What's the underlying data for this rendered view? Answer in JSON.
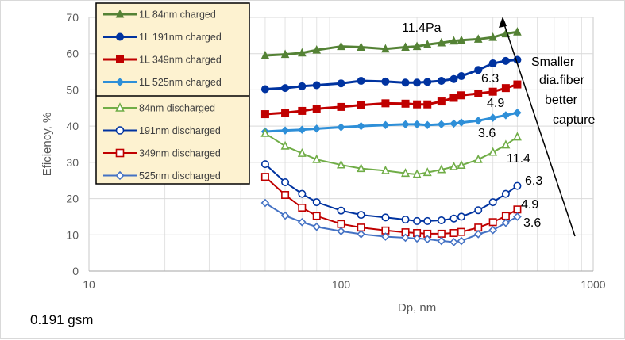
{
  "chart_data": {
    "type": "line",
    "title": "",
    "xlabel": "Dp, nm",
    "ylabel": "Eficiency, %",
    "xscale": "log",
    "xlim": [
      10,
      1000
    ],
    "ylim": [
      0,
      70
    ],
    "x_ticks": [
      10,
      100,
      1000
    ],
    "x_tick_labels": [
      "10",
      "100",
      "1000"
    ],
    "y_ticks": [
      0,
      10,
      20,
      30,
      40,
      50,
      60,
      70
    ],
    "y_tick_labels": [
      "0",
      "10",
      "20",
      "30",
      "40",
      "50",
      "60",
      "70"
    ],
    "grid": "major and minor vertical, major horizontal",
    "legend_position": "top-left",
    "x": [
      50,
      60,
      70,
      80,
      100,
      120,
      150,
      180,
      200,
      220,
      250,
      280,
      300,
      350,
      400,
      450,
      500
    ],
    "series": [
      {
        "name": "1L 84nm charged",
        "color": "#548235",
        "filled": true,
        "marker": "triangle",
        "values": [
          59.5,
          59.8,
          60.2,
          61,
          62,
          61.8,
          61.3,
          61.8,
          62,
          62.5,
          63,
          63.5,
          63.7,
          64,
          64.5,
          65.5,
          66
        ]
      },
      {
        "name": "1L 191nm charged",
        "color": "#0033a0",
        "filled": true,
        "marker": "circle",
        "values": [
          50.2,
          50.5,
          51,
          51.3,
          51.8,
          52.5,
          52.3,
          52,
          52,
          52.2,
          52.5,
          53,
          53.8,
          55.5,
          57.3,
          58,
          58.3
        ]
      },
      {
        "name": "1L 349nm charged",
        "color": "#c00000",
        "filled": true,
        "marker": "square",
        "values": [
          43.3,
          43.7,
          44.2,
          44.8,
          45.3,
          45.8,
          46.3,
          46.2,
          46,
          46,
          46.8,
          47.8,
          48.5,
          49,
          49.5,
          50.5,
          51.5
        ]
      },
      {
        "name": "1L 525nm charged",
        "color": "#2e8fd8",
        "filled": true,
        "marker": "diamond",
        "values": [
          38.5,
          38.8,
          39,
          39.3,
          39.7,
          40,
          40.3,
          40.5,
          40.5,
          40.3,
          40.5,
          40.7,
          41,
          41.5,
          42.3,
          43,
          43.7
        ]
      },
      {
        "name": "84nm discharged",
        "color": "#70ad47",
        "filled": false,
        "marker": "triangle",
        "values": [
          38,
          34.5,
          32.5,
          30.8,
          29.3,
          28.3,
          27.7,
          27,
          26.7,
          27.2,
          28,
          28.8,
          29.2,
          30.8,
          32.8,
          34.8,
          37
        ]
      },
      {
        "name": "191nm discharged",
        "color": "#0033a0",
        "filled": false,
        "marker": "circle",
        "values": [
          29.5,
          24.5,
          21.3,
          19,
          16.7,
          15.5,
          14.8,
          14.2,
          13.8,
          13.8,
          14,
          14.5,
          15,
          16.8,
          19,
          21.3,
          23.5
        ]
      },
      {
        "name": "349nm discharged",
        "color": "#c00000",
        "filled": false,
        "marker": "square",
        "values": [
          26,
          21,
          17.5,
          15.2,
          13,
          12,
          11.2,
          10.7,
          10.5,
          10.3,
          10.3,
          10.5,
          10.8,
          12,
          13.5,
          15.2,
          17
        ]
      },
      {
        "name": "525nm discharged",
        "color": "#4472c4",
        "filled": false,
        "marker": "diamond",
        "values": [
          18.8,
          15.3,
          13.5,
          12.2,
          11,
          10.2,
          9.5,
          9.2,
          9,
          8.8,
          8.3,
          8,
          8.3,
          10.2,
          11.3,
          13.3,
          15
        ]
      }
    ],
    "annotations": {
      "pressures_charged": [
        "11.4Pa",
        "6.3",
        "4.9",
        "3.6"
      ],
      "pressures_discharged": [
        "11.4",
        "6.3",
        "4.9",
        "3.6"
      ],
      "arrow_text": [
        "Smaller",
        "dia.fiber",
        "better",
        "capture"
      ]
    },
    "note": "0.191 gsm"
  }
}
